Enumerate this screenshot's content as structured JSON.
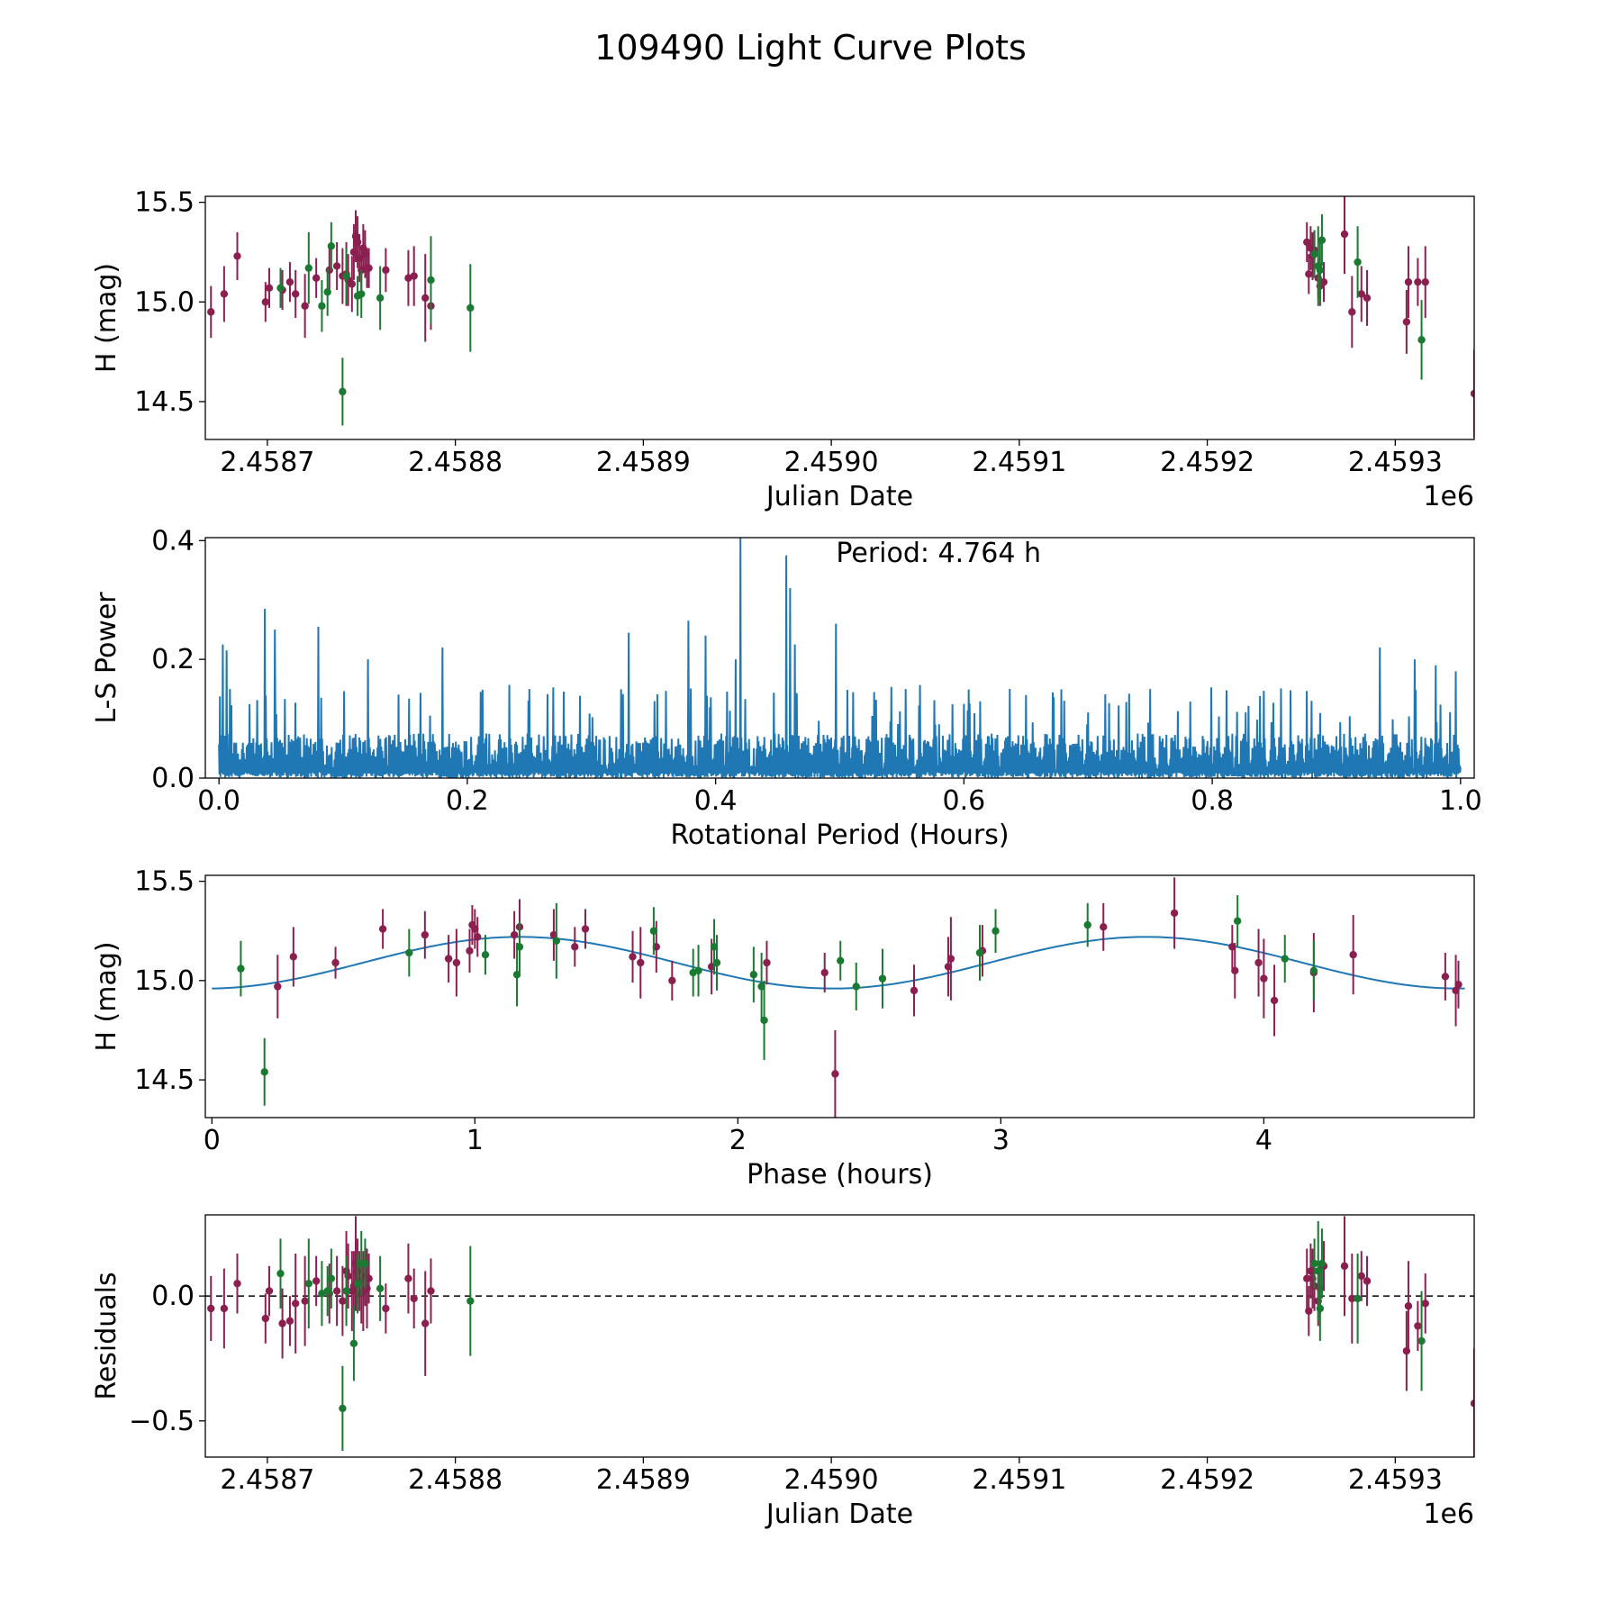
{
  "figure": {
    "title": "109490 Light Curve Plots",
    "colors": {
      "red": "#8b1f4f",
      "green": "#1a7a32",
      "blue": "#1f77b4"
    }
  },
  "chart_data": [
    {
      "id": "lightcurve",
      "type": "scatter",
      "xlabel": "Julian Date",
      "ylabel": "H (mag)",
      "offset_label": "1e6",
      "xlim": [
        2.458667,
        2.459342
      ],
      "ylim": [
        14.31,
        15.53
      ],
      "xticks": [
        2.4587,
        2.4588,
        2.4589,
        2.459,
        2.4591,
        2.4592,
        2.4593
      ],
      "xtick_labels": [
        "2.4587",
        "2.4588",
        "2.4589",
        "2.4590",
        "2.4591",
        "2.4592",
        "2.4593"
      ],
      "yticks": [
        14.5,
        15.0,
        15.5
      ],
      "ytick_labels": [
        "14.5",
        "15.0",
        "15.5"
      ],
      "series": [
        {
          "name": "red",
          "color": "#8b1f4f",
          "x": [
            2.45867,
            2.458677,
            2.458684,
            2.458699,
            2.458701,
            2.458708,
            2.458712,
            2.458715,
            2.45872,
            2.458726,
            2.458733,
            2.458737,
            2.45874,
            2.458742,
            2.458743,
            2.458745,
            2.458746,
            2.458747,
            2.458748,
            2.458749,
            2.45875,
            2.458751,
            2.458752,
            2.458753,
            2.458754,
            2.458763,
            2.458775,
            2.458778,
            2.458784,
            2.458787,
            2.459253,
            2.459254,
            2.459255,
            2.459256,
            2.459257,
            2.459259,
            2.45926,
            2.459262,
            2.459273,
            2.459277,
            2.459282,
            2.459285,
            2.459306,
            2.459307,
            2.459312,
            2.459316,
            2.459342
          ],
          "y": [
            14.95,
            15.04,
            15.23,
            15.0,
            15.07,
            15.06,
            15.1,
            15.04,
            14.98,
            15.12,
            15.16,
            15.18,
            15.13,
            15.14,
            15.11,
            15.09,
            15.25,
            15.33,
            15.3,
            15.22,
            15.16,
            15.27,
            15.24,
            15.17,
            15.17,
            15.16,
            15.12,
            15.13,
            15.02,
            14.98,
            15.3,
            15.14,
            15.27,
            15.23,
            15.26,
            15.12,
            15.08,
            15.1,
            15.34,
            14.95,
            15.04,
            15.02,
            14.9,
            15.1,
            15.1,
            15.1,
            14.54
          ],
          "err": [
            0.13,
            0.14,
            0.12,
            0.1,
            0.1,
            0.1,
            0.1,
            0.12,
            0.16,
            0.1,
            0.12,
            0.12,
            0.14,
            0.16,
            0.13,
            0.14,
            0.14,
            0.13,
            0.13,
            0.12,
            0.1,
            0.12,
            0.12,
            0.1,
            0.1,
            0.11,
            0.14,
            0.15,
            0.22,
            0.12,
            0.1,
            0.1,
            0.11,
            0.12,
            0.1,
            0.1,
            0.1,
            0.1,
            0.2,
            0.18,
            0.14,
            0.14,
            0.16,
            0.18,
            0.12,
            0.18,
            0.22
          ]
        },
        {
          "name": "green",
          "color": "#1a7a32",
          "x": [
            2.458707,
            2.458722,
            2.458729,
            2.458732,
            2.458734,
            2.45874,
            2.458742,
            2.458748,
            2.45875,
            2.45876,
            2.458787,
            2.458808,
            2.459257,
            2.459259,
            2.45926,
            2.459261,
            2.45928,
            2.459314
          ],
          "y": [
            15.07,
            15.17,
            14.98,
            15.05,
            15.28,
            14.55,
            15.13,
            15.03,
            15.04,
            15.02,
            15.11,
            14.97,
            15.24,
            15.18,
            15.16,
            15.31,
            15.2,
            14.81
          ],
          "err": [
            0.1,
            0.18,
            0.13,
            0.12,
            0.12,
            0.17,
            0.14,
            0.1,
            0.12,
            0.16,
            0.22,
            0.22,
            0.12,
            0.2,
            0.16,
            0.13,
            0.18,
            0.2
          ]
        }
      ]
    },
    {
      "id": "periodogram",
      "type": "line",
      "xlabel": "Rotational Period (Hours)",
      "ylabel": "L-S Power",
      "annotation": "Period: 4.764 h",
      "xlim": [
        -0.011,
        1.011
      ],
      "ylim": [
        0,
        0.405
      ],
      "xticks": [
        0.0,
        0.2,
        0.4,
        0.6,
        0.8,
        1.0
      ],
      "xtick_labels": [
        "0.0",
        "0.2",
        "0.4",
        "0.6",
        "0.8",
        "1.0"
      ],
      "yticks": [
        0.0,
        0.2,
        0.4
      ],
      "ytick_labels": [
        "0.0",
        "0.2",
        "0.4"
      ],
      "baseline_max": 0.08,
      "peaks": [
        {
          "x": 0.003,
          "y": 0.225
        },
        {
          "x": 0.006,
          "y": 0.215
        },
        {
          "x": 0.009,
          "y": 0.15
        },
        {
          "x": 0.037,
          "y": 0.285
        },
        {
          "x": 0.045,
          "y": 0.25
        },
        {
          "x": 0.08,
          "y": 0.255
        },
        {
          "x": 0.12,
          "y": 0.2
        },
        {
          "x": 0.18,
          "y": 0.22
        },
        {
          "x": 0.25,
          "y": 0.15
        },
        {
          "x": 0.33,
          "y": 0.245
        },
        {
          "x": 0.378,
          "y": 0.265
        },
        {
          "x": 0.392,
          "y": 0.24
        },
        {
          "x": 0.42,
          "y": 0.405
        },
        {
          "x": 0.416,
          "y": 0.2
        },
        {
          "x": 0.457,
          "y": 0.375
        },
        {
          "x": 0.46,
          "y": 0.32
        },
        {
          "x": 0.464,
          "y": 0.225
        },
        {
          "x": 0.497,
          "y": 0.26
        },
        {
          "x": 0.553,
          "y": 0.15
        },
        {
          "x": 0.65,
          "y": 0.14
        },
        {
          "x": 0.75,
          "y": 0.15
        },
        {
          "x": 0.88,
          "y": 0.13
        },
        {
          "x": 0.935,
          "y": 0.22
        },
        {
          "x": 0.963,
          "y": 0.2
        },
        {
          "x": 0.98,
          "y": 0.19
        },
        {
          "x": 0.996,
          "y": 0.18
        }
      ]
    },
    {
      "id": "phased",
      "type": "scatter",
      "xlabel": "Phase (hours)",
      "ylabel": "H (mag)",
      "xlim": [
        -0.025,
        4.8
      ],
      "ylim": [
        14.31,
        15.53
      ],
      "xticks": [
        0,
        1,
        2,
        3,
        4
      ],
      "xtick_labels": [
        "0",
        "1",
        "2",
        "3",
        "4"
      ],
      "yticks": [
        14.5,
        15.0,
        15.5
      ],
      "ytick_labels": [
        "14.5",
        "15.0",
        "15.5"
      ],
      "fit": {
        "period": 4.764,
        "mean": 15.09,
        "amplitude": 0.13,
        "phase_peak": 1.17
      },
      "series": [
        {
          "name": "red",
          "color": "#8b1f4f",
          "x": [
            0.25,
            0.31,
            0.47,
            0.65,
            0.81,
            0.9,
            0.93,
            0.98,
            0.99,
            1.0,
            1.01,
            1.15,
            1.17,
            1.3,
            1.38,
            1.42,
            1.6,
            1.63,
            1.69,
            1.75,
            1.9,
            2.11,
            2.33,
            2.37,
            2.67,
            2.8,
            2.81,
            2.93,
            3.39,
            3.66,
            3.88,
            3.89,
            3.98,
            4.0,
            4.04,
            4.19,
            4.34,
            4.69,
            4.73,
            4.74
          ],
          "y": [
            14.97,
            15.12,
            15.09,
            15.26,
            15.23,
            15.11,
            15.09,
            15.15,
            15.28,
            15.26,
            15.22,
            15.23,
            15.27,
            15.23,
            15.17,
            15.26,
            15.12,
            15.09,
            15.17,
            15.0,
            15.07,
            15.09,
            15.04,
            14.53,
            14.95,
            15.07,
            15.11,
            15.15,
            15.27,
            15.34,
            15.17,
            15.05,
            15.09,
            15.01,
            14.9,
            15.04,
            15.13,
            15.02,
            14.95,
            14.98
          ],
          "err": [
            0.16,
            0.15,
            0.08,
            0.1,
            0.12,
            0.12,
            0.17,
            0.11,
            0.1,
            0.1,
            0.1,
            0.12,
            0.14,
            0.13,
            0.1,
            0.1,
            0.13,
            0.18,
            0.13,
            0.1,
            0.14,
            0.11,
            0.1,
            0.22,
            0.13,
            0.15,
            0.21,
            0.13,
            0.12,
            0.18,
            0.11,
            0.14,
            0.17,
            0.2,
            0.18,
            0.2,
            0.2,
            0.12,
            0.18,
            0.12
          ]
        },
        {
          "name": "green",
          "color": "#1a7a32",
          "x": [
            0.11,
            0.2,
            0.75,
            1.04,
            1.16,
            1.17,
            1.31,
            1.68,
            1.83,
            1.85,
            1.91,
            1.92,
            2.06,
            2.09,
            2.1,
            2.39,
            2.45,
            2.55,
            2.92,
            2.98,
            3.33,
            3.9,
            4.08,
            4.19
          ],
          "y": [
            15.06,
            14.54,
            15.14,
            15.13,
            15.03,
            15.17,
            15.2,
            15.25,
            15.04,
            15.05,
            15.17,
            15.09,
            15.03,
            14.97,
            14.8,
            15.1,
            14.97,
            15.01,
            15.14,
            15.25,
            15.28,
            15.3,
            15.11,
            15.05
          ],
          "err": [
            0.14,
            0.17,
            0.12,
            0.1,
            0.16,
            0.13,
            0.19,
            0.12,
            0.12,
            0.13,
            0.14,
            0.14,
            0.14,
            0.17,
            0.2,
            0.1,
            0.12,
            0.15,
            0.14,
            0.11,
            0.11,
            0.13,
            0.12,
            0.15
          ]
        }
      ]
    },
    {
      "id": "residuals",
      "type": "scatter",
      "xlabel": "Julian Date",
      "ylabel": "Residuals",
      "offset_label": "1e6",
      "xlim": [
        2.458667,
        2.459342
      ],
      "ylim": [
        -0.645,
        0.325
      ],
      "xticks": [
        2.4587,
        2.4588,
        2.4589,
        2.459,
        2.4591,
        2.4592,
        2.4593
      ],
      "xtick_labels": [
        "2.4587",
        "2.4588",
        "2.4589",
        "2.4590",
        "2.4591",
        "2.4592",
        "2.4593"
      ],
      "yticks": [
        -0.5,
        0.0
      ],
      "ytick_labels": [
        "−0.5",
        "0.0"
      ],
      "hline": 0.0,
      "series": [
        {
          "name": "red",
          "color": "#8b1f4f",
          "x": [
            2.45867,
            2.458677,
            2.458684,
            2.458699,
            2.458701,
            2.458708,
            2.458712,
            2.458715,
            2.45872,
            2.458726,
            2.458733,
            2.458737,
            2.45874,
            2.458742,
            2.458743,
            2.458745,
            2.458746,
            2.458747,
            2.458748,
            2.458749,
            2.45875,
            2.458751,
            2.458752,
            2.458753,
            2.458754,
            2.458763,
            2.458775,
            2.458778,
            2.458784,
            2.458787,
            2.459253,
            2.459254,
            2.459255,
            2.459256,
            2.459257,
            2.459259,
            2.45926,
            2.459262,
            2.459273,
            2.459277,
            2.459282,
            2.459285,
            2.459306,
            2.459307,
            2.459312,
            2.459316,
            2.459342
          ],
          "y": [
            -0.05,
            -0.05,
            0.05,
            -0.09,
            0.02,
            -0.11,
            -0.1,
            -0.03,
            -0.02,
            0.06,
            0.01,
            0.02,
            -0.02,
            0.1,
            0.08,
            0.02,
            0.04,
            0.13,
            0.1,
            0.06,
            0.01,
            0.02,
            0.08,
            0.03,
            0.07,
            -0.05,
            0.07,
            -0.01,
            -0.11,
            0.02,
            0.07,
            -0.06,
            0.1,
            0.07,
            0.04,
            -0.02,
            0.03,
            0.12,
            0.12,
            -0.01,
            0.08,
            0.06,
            -0.22,
            -0.04,
            -0.12,
            -0.03,
            -0.43
          ],
          "err": [
            0.13,
            0.16,
            0.12,
            0.1,
            0.1,
            0.14,
            0.1,
            0.2,
            0.18,
            0.1,
            0.12,
            0.14,
            0.14,
            0.16,
            0.13,
            0.16,
            0.14,
            0.19,
            0.13,
            0.12,
            0.12,
            0.16,
            0.12,
            0.16,
            0.1,
            0.1,
            0.14,
            0.12,
            0.21,
            0.13,
            0.12,
            0.1,
            0.11,
            0.12,
            0.1,
            0.1,
            0.1,
            0.1,
            0.2,
            0.18,
            0.1,
            0.1,
            0.16,
            0.18,
            0.1,
            0.12,
            0.22
          ]
        },
        {
          "name": "green",
          "color": "#1a7a32",
          "x": [
            2.458707,
            2.458722,
            2.458729,
            2.458732,
            2.458734,
            2.45874,
            2.458742,
            2.458746,
            2.458748,
            2.45875,
            2.458752,
            2.45876,
            2.458808,
            2.459257,
            2.459259,
            2.45926,
            2.459261,
            2.45928,
            2.459314
          ],
          "y": [
            0.09,
            0.05,
            0.01,
            0.02,
            0.07,
            -0.45,
            0.02,
            -0.19,
            0.05,
            0.13,
            0.13,
            0.03,
            -0.02,
            0.13,
            0.1,
            -0.05,
            0.13,
            -0.01,
            -0.18
          ],
          "err": [
            0.14,
            0.18,
            0.13,
            0.1,
            0.12,
            0.17,
            0.14,
            0.15,
            0.12,
            0.13,
            0.1,
            0.13,
            0.22,
            0.1,
            0.2,
            0.13,
            0.14,
            0.18,
            0.2
          ]
        }
      ]
    }
  ]
}
